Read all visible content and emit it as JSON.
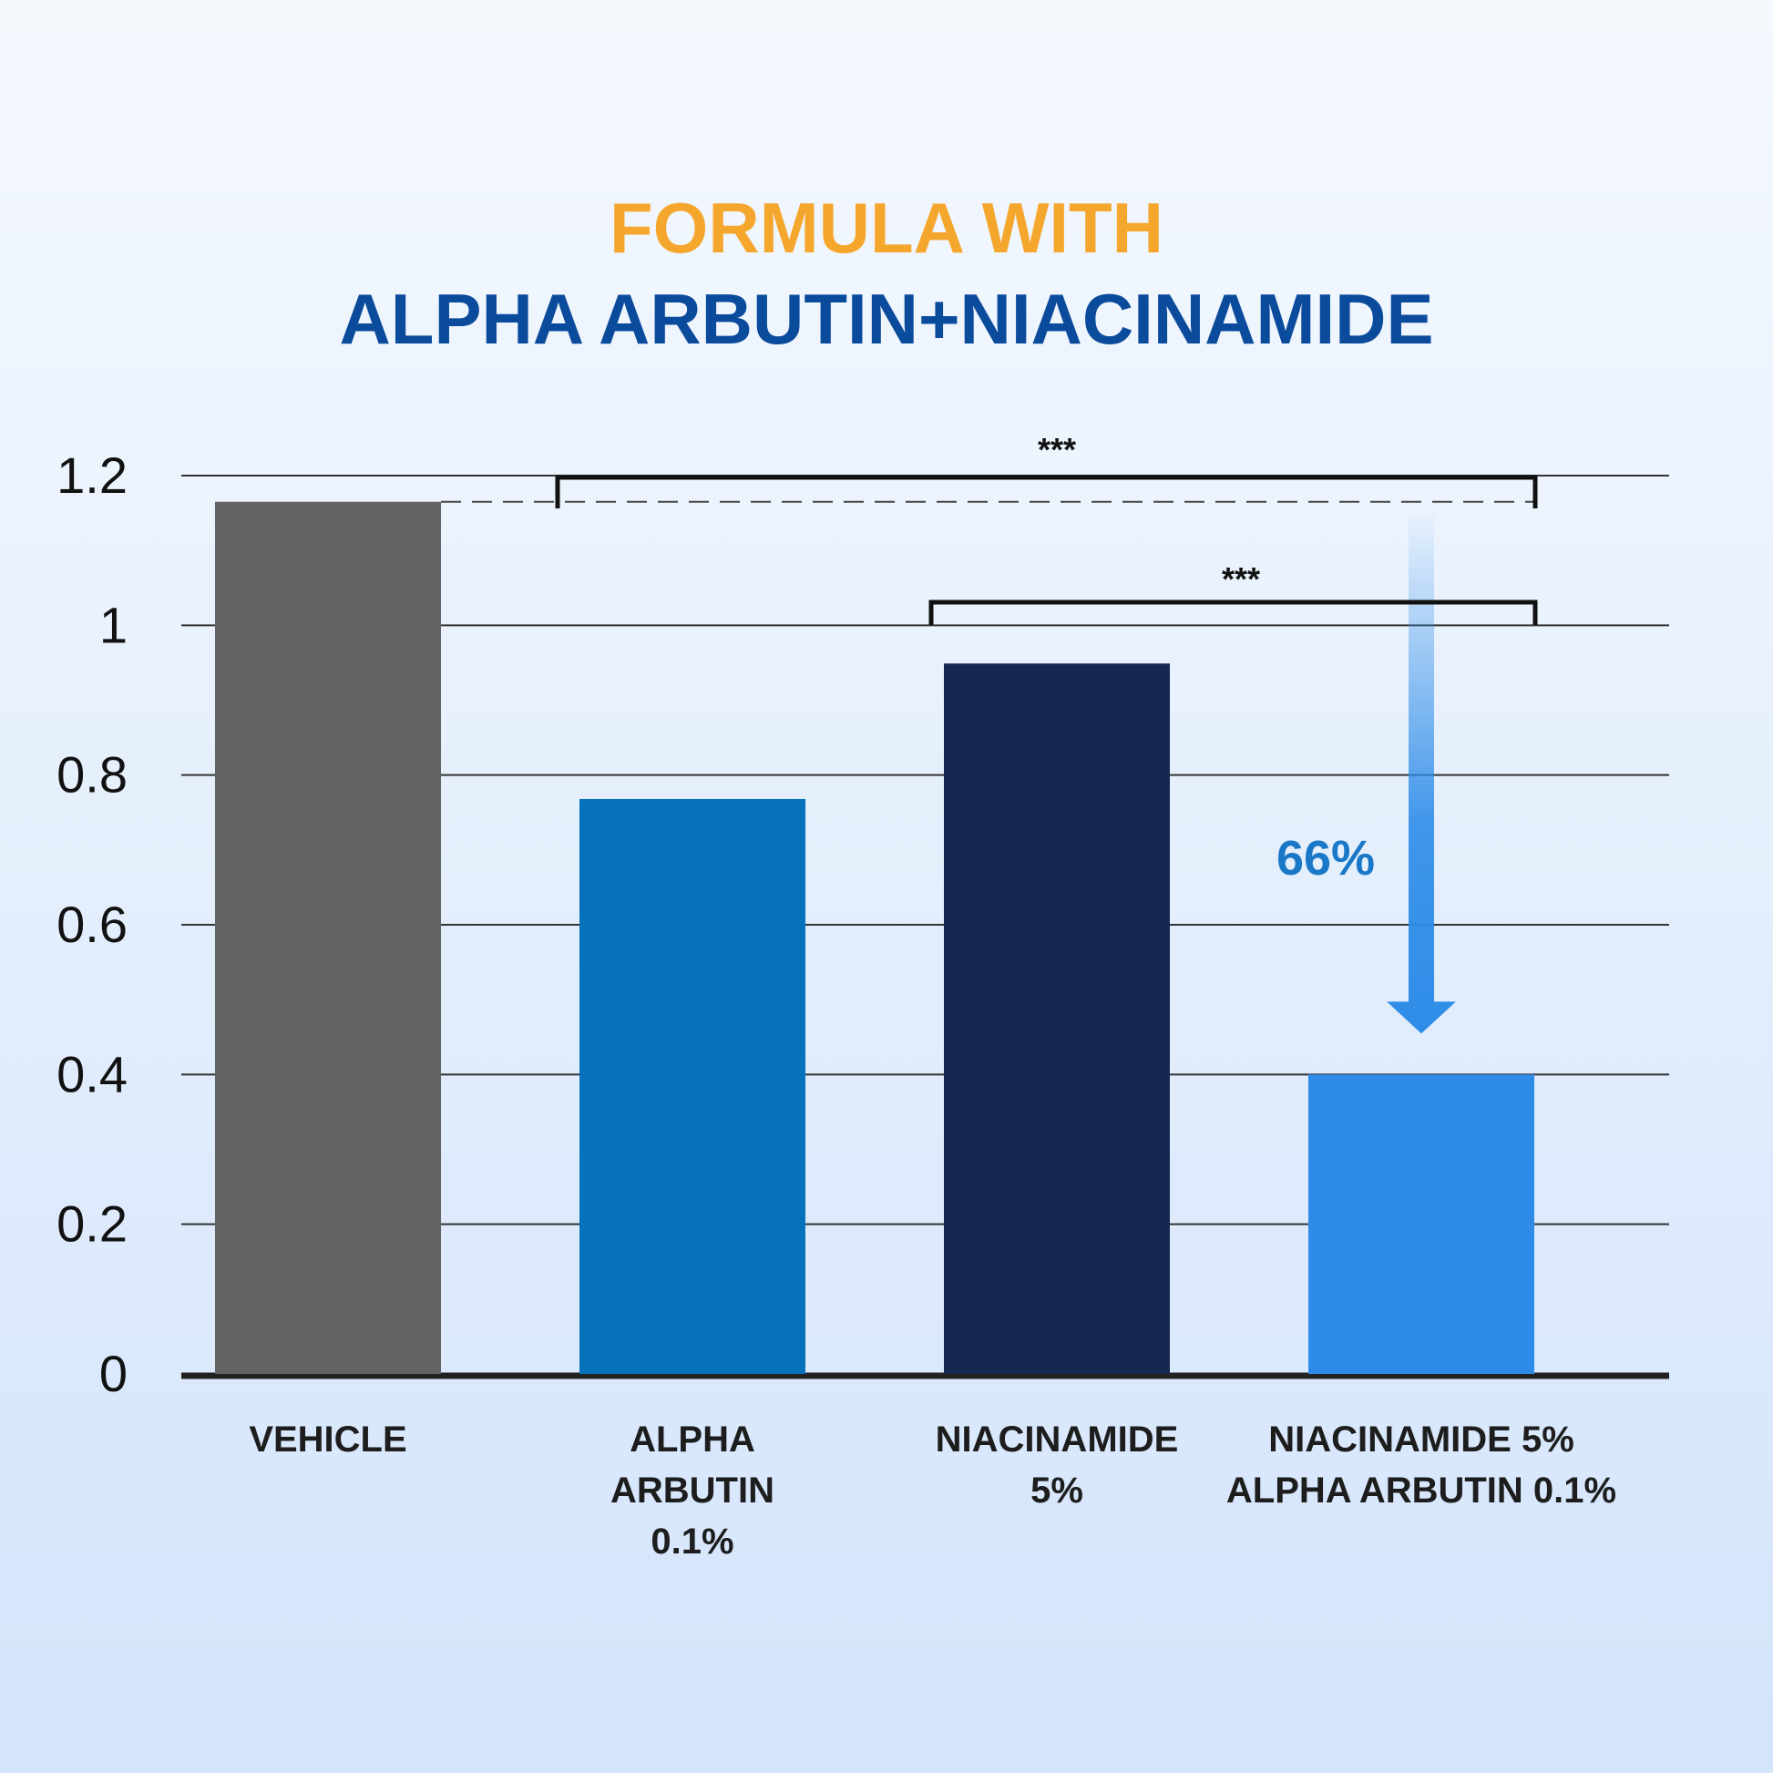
{
  "chart_data": {
    "type": "bar",
    "title": "FORMULA WITH",
    "subtitle": "ALPHA ARBUTIN+NIACINAMIDE",
    "categories": [
      "VEHICLE",
      "ALPHA\nARBUTIN\n0.1%",
      "NIACINAMIDE\n5%",
      "NIACINAMIDE 5%\nALPHA ARBUTIN 0.1%"
    ],
    "values": [
      1.165,
      0.768,
      0.949,
      0.4
    ],
    "colors": [
      "#636363",
      "#0572bb",
      "#16284f",
      "#2e8ce8"
    ],
    "ylim": [
      0,
      1.2
    ],
    "yticks": [
      0,
      0.2,
      0.4,
      0.6,
      0.8,
      1,
      1.2
    ],
    "grid": true,
    "annotations": [
      "***",
      "***",
      "66%"
    ]
  }
}
